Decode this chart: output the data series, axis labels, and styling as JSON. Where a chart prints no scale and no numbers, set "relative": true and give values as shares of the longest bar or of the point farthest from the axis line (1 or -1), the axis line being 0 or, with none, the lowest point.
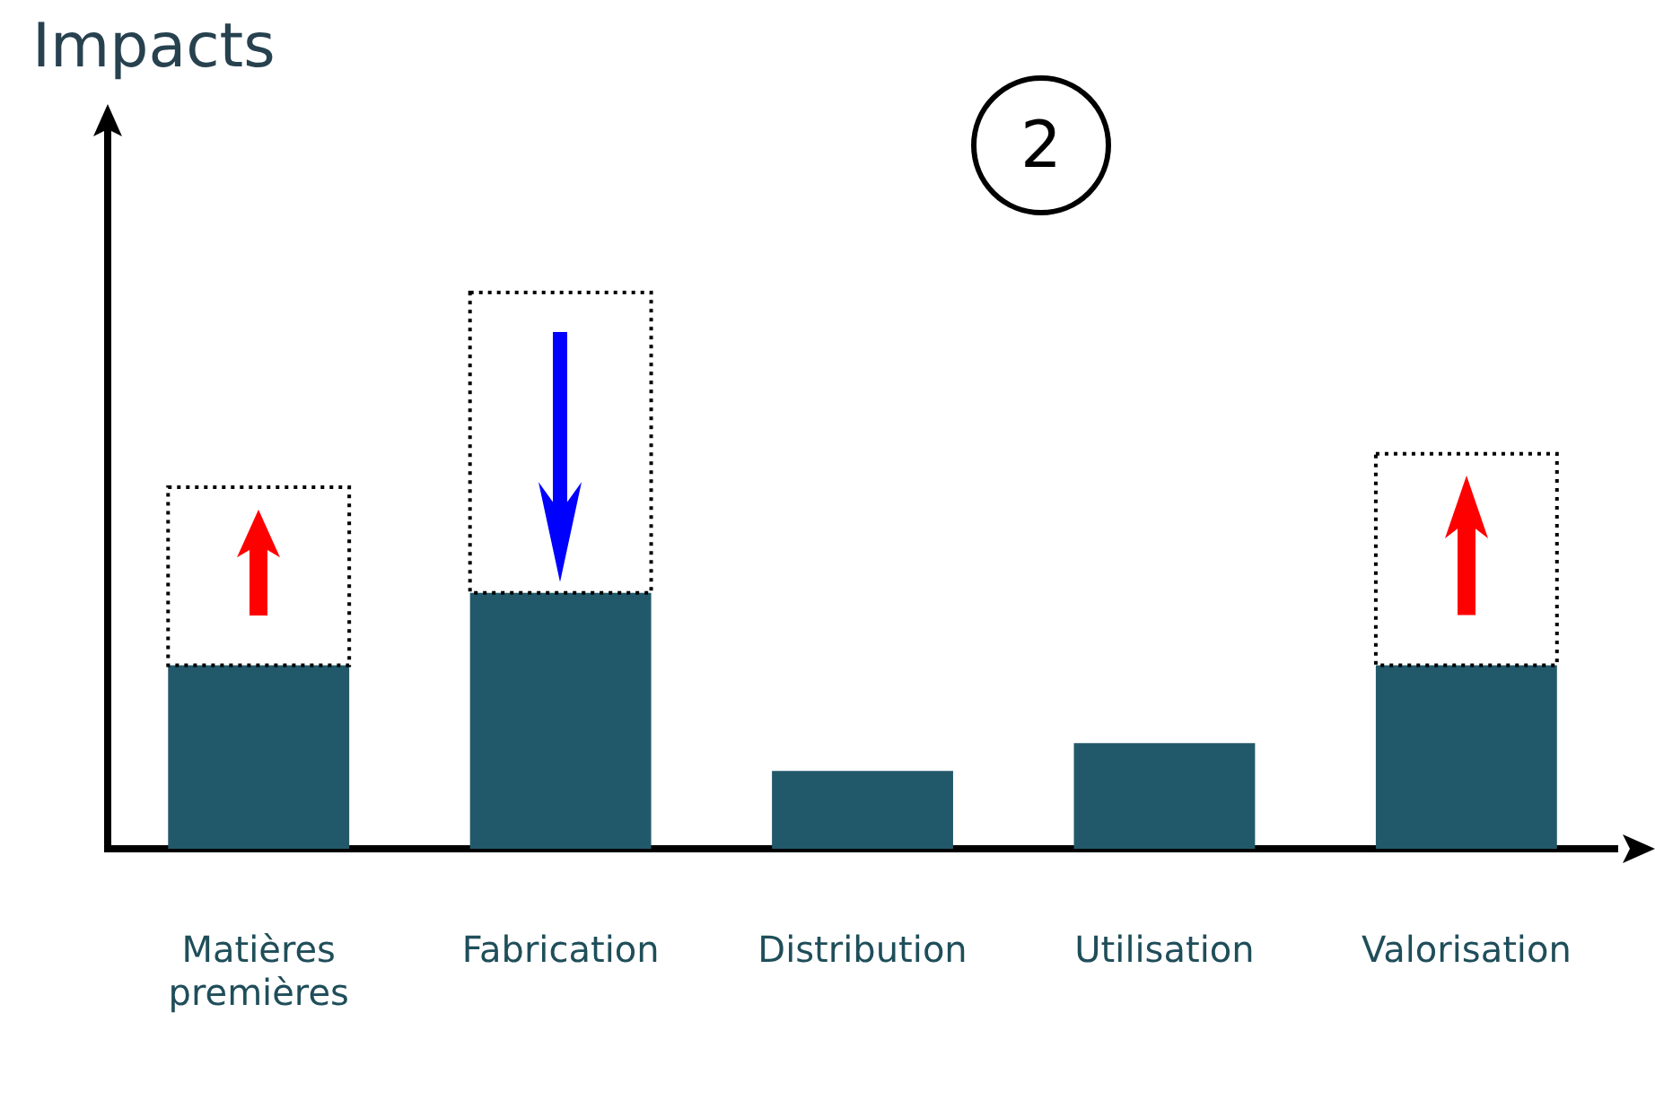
{
  "chart_data": {
    "type": "bar",
    "relative": true,
    "ylabel": "Impacts",
    "annotations": [
      "2"
    ],
    "categories": [
      "Matières premières",
      "Fabrication",
      "Distribution",
      "Utilisation",
      "Valorisation"
    ],
    "series": [
      {
        "color": "#22596a",
        "values": [
          0.33,
          0.46,
          0.14,
          0.19,
          0.33
        ]
      },
      {
        "color": "#000000",
        "line_style": "dotted",
        "values": [
          0.32,
          0.54,
          null,
          null,
          0.38
        ]
      }
    ],
    "stacked": true,
    "grid": false,
    "legend": false
  }
}
